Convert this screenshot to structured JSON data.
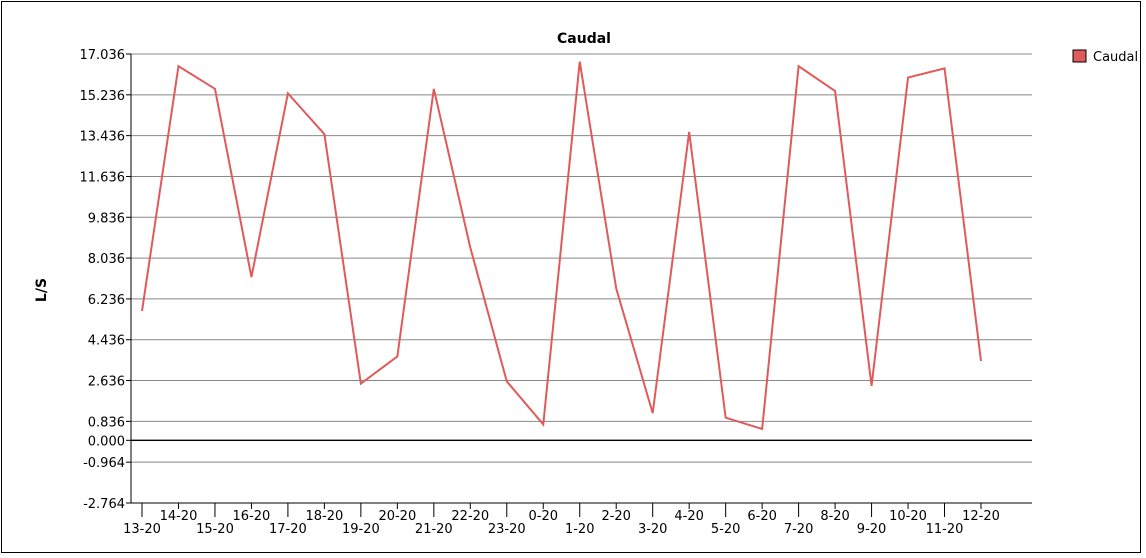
{
  "chart_data": {
    "type": "line",
    "title": "Caudal",
    "ylabel": "L/S",
    "xlabel": "",
    "ylim": [
      -2.764,
      17.036
    ],
    "yticks": [
      "17.036",
      "15.236",
      "13.436",
      "11.636",
      "9.836",
      "8.036",
      "6.236",
      "4.436",
      "2.636",
      "0.836",
      "0.000",
      "-0.964",
      "-2.764"
    ],
    "yticks_values": [
      17.036,
      15.236,
      13.436,
      11.636,
      9.836,
      8.036,
      6.236,
      4.436,
      2.636,
      0.836,
      0.0,
      -0.964,
      -2.764
    ],
    "x": [
      "13-20",
      "14-20",
      "15-20",
      "16-20",
      "17-20",
      "18-20",
      "19-20",
      "20-20",
      "21-20",
      "22-20",
      "23-20",
      "0-20",
      "1-20",
      "2-20",
      "3-20",
      "4-20",
      "5-20",
      "6-20",
      "7-20",
      "8-20",
      "9-20",
      "10-20",
      "11-20",
      "12-20"
    ],
    "grid": true,
    "legend_position": "top-right",
    "color": "#e05a5a",
    "series": [
      {
        "name": "Caudal",
        "values": [
          5.7,
          16.5,
          15.5,
          7.2,
          15.3,
          13.5,
          2.5,
          3.7,
          15.5,
          8.5,
          2.6,
          0.7,
          16.7,
          6.7,
          1.2,
          13.6,
          1.0,
          0.5,
          16.5,
          15.4,
          2.4,
          16.0,
          16.4,
          3.5
        ]
      }
    ]
  }
}
